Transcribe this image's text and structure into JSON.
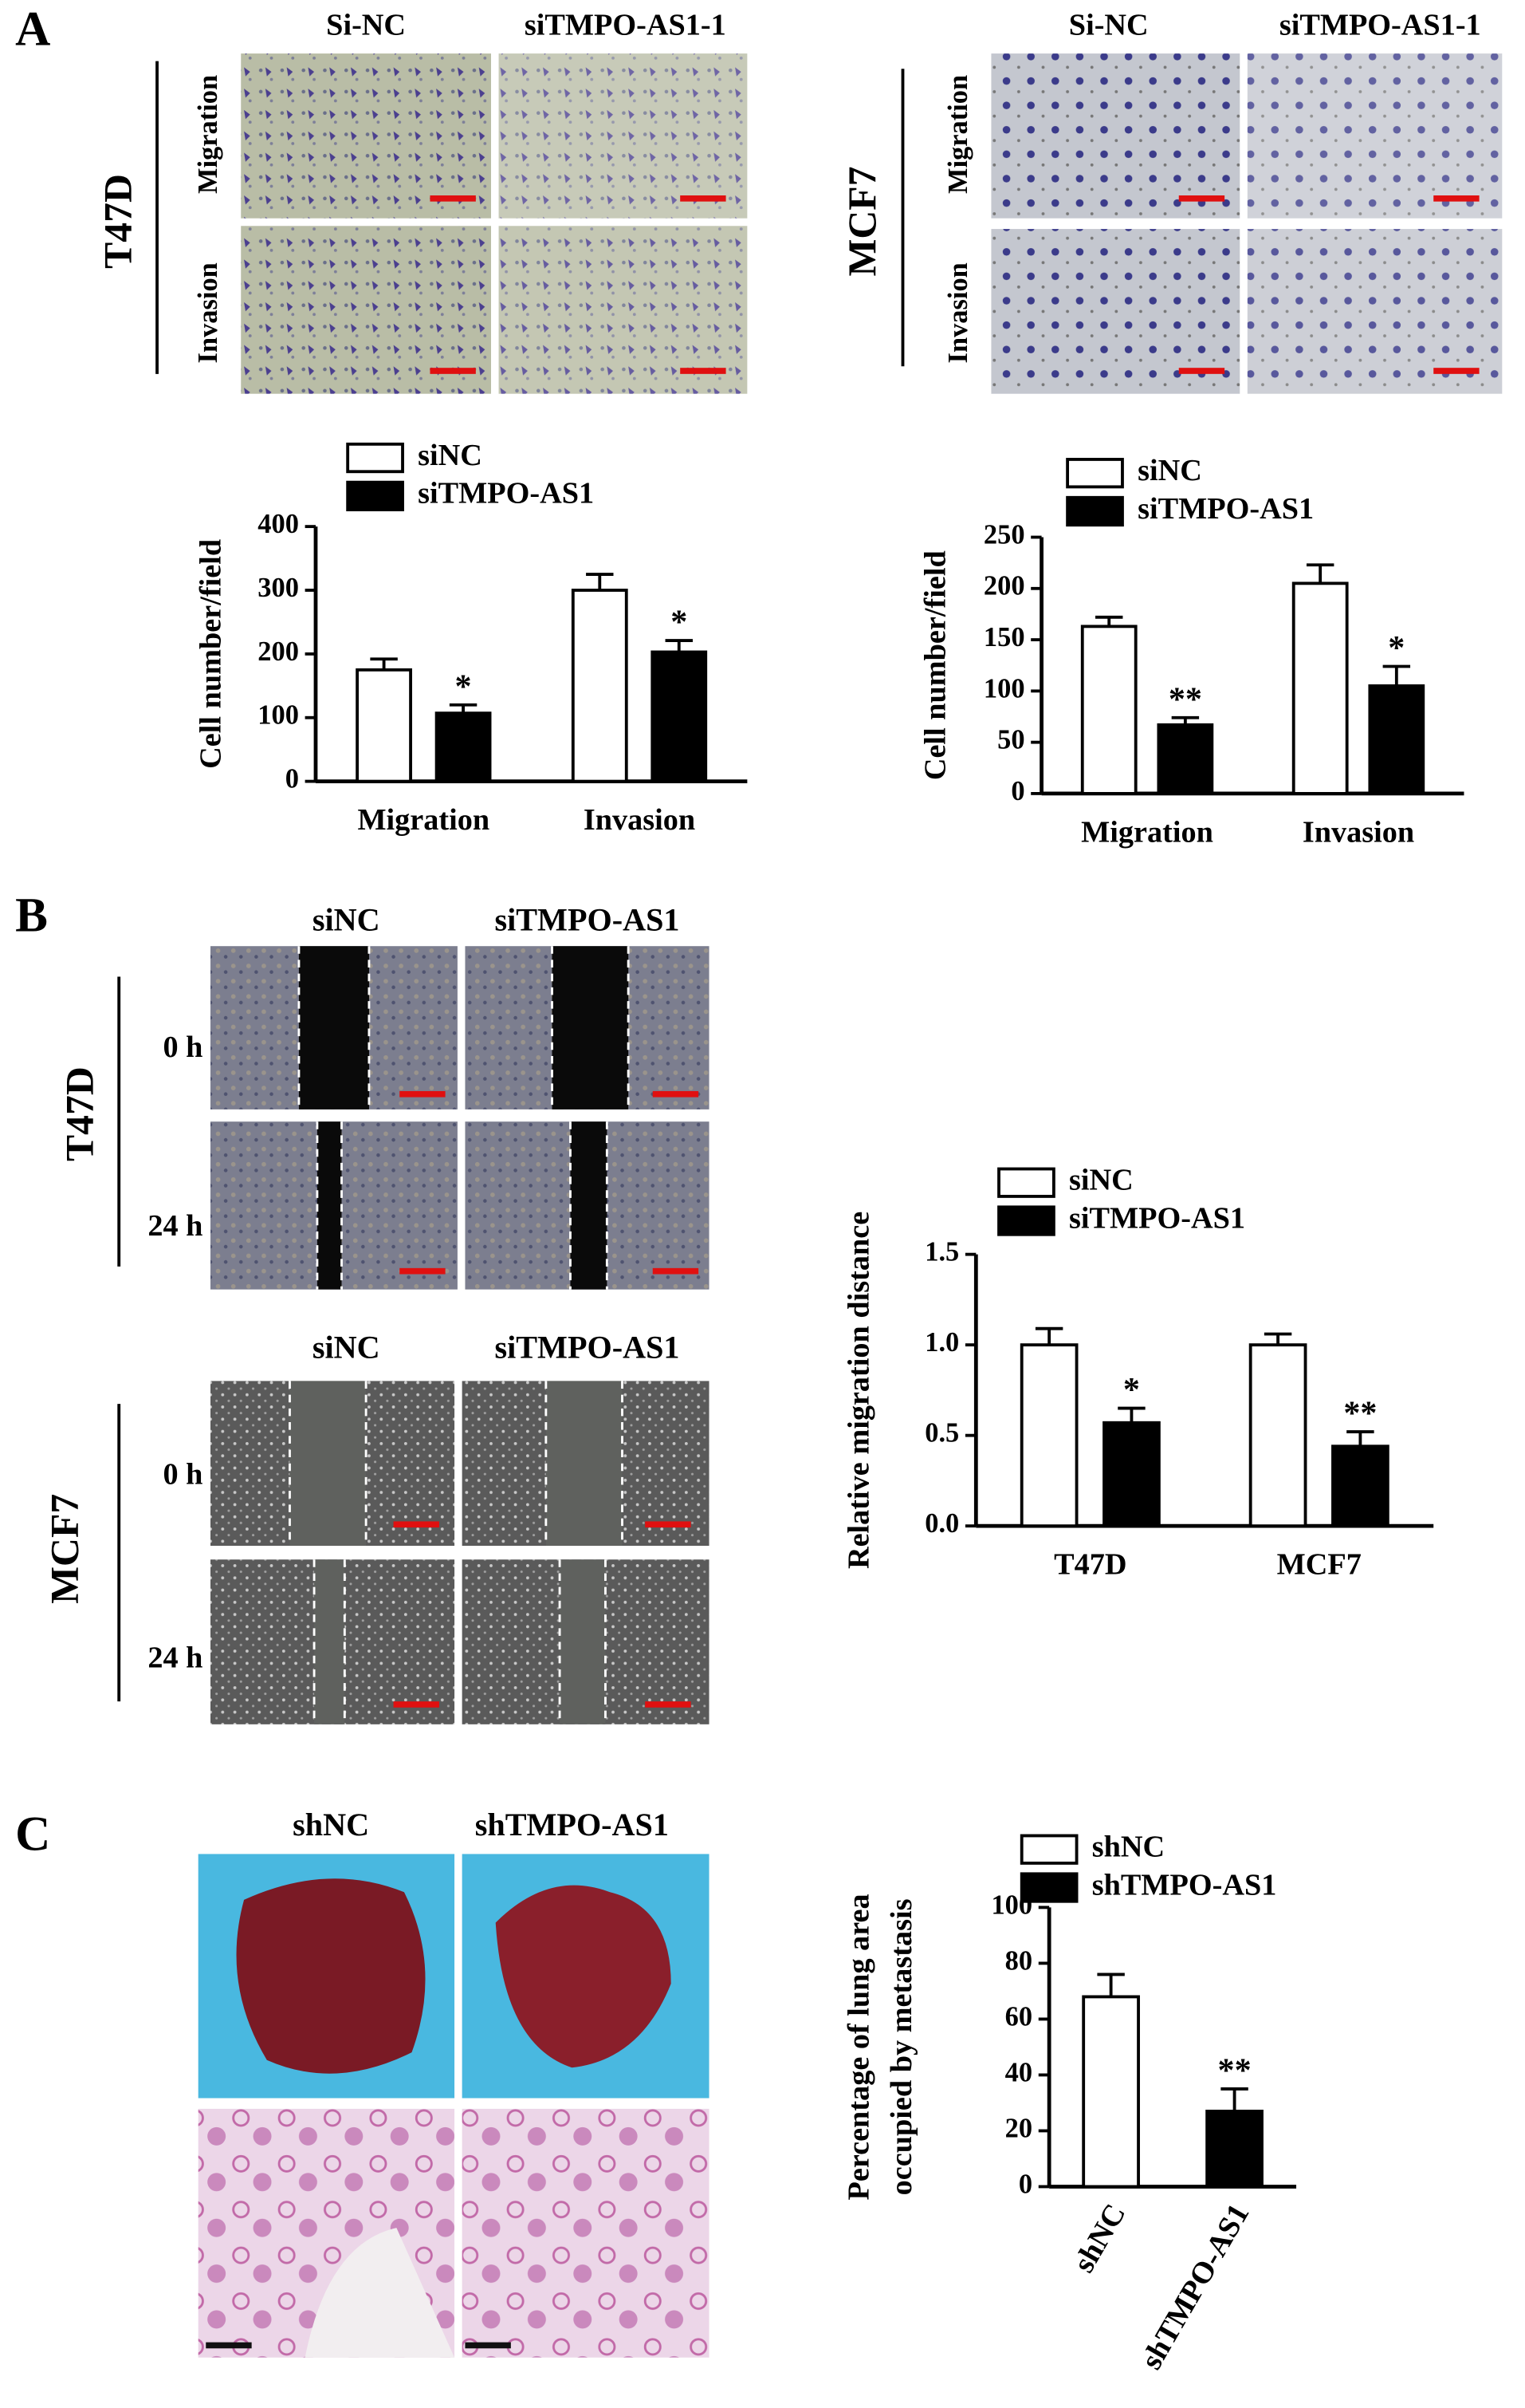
{
  "figure": {
    "panel_labels": [
      "A",
      "B",
      "C"
    ],
    "A": {
      "cell_lines": [
        "T47D",
        "MCF7"
      ],
      "columns": [
        "Si-NC",
        "siTMPO-AS1-1"
      ],
      "rows": [
        "Migration",
        "Invasion"
      ]
    },
    "B": {
      "cell_lines": [
        "T47D",
        "MCF7"
      ],
      "columns": [
        "siNC",
        "siTMPO-AS1"
      ],
      "rows": [
        "0 h",
        "24 h"
      ]
    },
    "C": {
      "columns": [
        "shNC",
        "shTMPO-AS1"
      ]
    }
  },
  "chart_data": [
    {
      "type": "bar",
      "y_label": "Cell number/field",
      "categories": [
        "Migration",
        "Invasion"
      ],
      "series": [
        {
          "name": "siNC",
          "color": "#ffffff",
          "values": [
            175,
            300
          ],
          "errors": [
            17,
            25
          ]
        },
        {
          "name": "siTMPO-AS1",
          "color": "#000000",
          "values": [
            107,
            203
          ],
          "errors": [
            13,
            18
          ],
          "annotations": [
            "*",
            "*"
          ]
        }
      ],
      "ylim": [
        0,
        400
      ],
      "yticks": [
        0,
        100,
        200,
        300,
        400
      ]
    },
    {
      "type": "bar",
      "y_label": "Cell number/field",
      "categories": [
        "Migration",
        "Invasion"
      ],
      "series": [
        {
          "name": "siNC",
          "color": "#ffffff",
          "values": [
            163,
            205
          ],
          "errors": [
            9,
            18
          ]
        },
        {
          "name": "siTMPO-AS1",
          "color": "#000000",
          "values": [
            67,
            105
          ],
          "errors": [
            7,
            19
          ],
          "annotations": [
            "**",
            "*"
          ]
        }
      ],
      "ylim": [
        0,
        250
      ],
      "yticks": [
        0,
        50,
        100,
        150,
        200,
        250
      ]
    },
    {
      "type": "bar",
      "y_label": "Relative migration distance",
      "categories": [
        "T47D",
        "MCF7"
      ],
      "series": [
        {
          "name": "siNC",
          "color": "#ffffff",
          "values": [
            1.0,
            1.0
          ],
          "errors": [
            0.09,
            0.06
          ]
        },
        {
          "name": "siTMPO-AS1",
          "color": "#000000",
          "values": [
            0.57,
            0.44
          ],
          "errors": [
            0.08,
            0.08
          ],
          "annotations": [
            "*",
            "**"
          ]
        }
      ],
      "ylim": [
        0,
        1.5
      ],
      "yticks": [
        {
          "value": 0,
          "label": "0.0"
        },
        {
          "value": 0.5,
          "label": "0.5"
        },
        {
          "value": 1,
          "label": "1.0"
        },
        {
          "value": 1.5,
          "label": "1.5"
        }
      ]
    },
    {
      "type": "bar",
      "y_label": [
        "Percentage of lung area",
        "occupied by metastasis"
      ],
      "categories": [
        "shNC",
        "shTMPO-AS1"
      ],
      "series": [
        {
          "name": "shNC",
          "color": "#ffffff",
          "values": [
            68,
            null
          ],
          "errors": [
            8,
            null
          ]
        },
        {
          "name": "shTMPO-AS1",
          "color": "#000000",
          "values": [
            null,
            27
          ],
          "errors": [
            null,
            8
          ],
          "annotations": [
            null,
            "**"
          ]
        }
      ],
      "ylim": [
        0,
        100
      ],
      "yticks": [
        0,
        20,
        40,
        60,
        80,
        100
      ]
    }
  ]
}
